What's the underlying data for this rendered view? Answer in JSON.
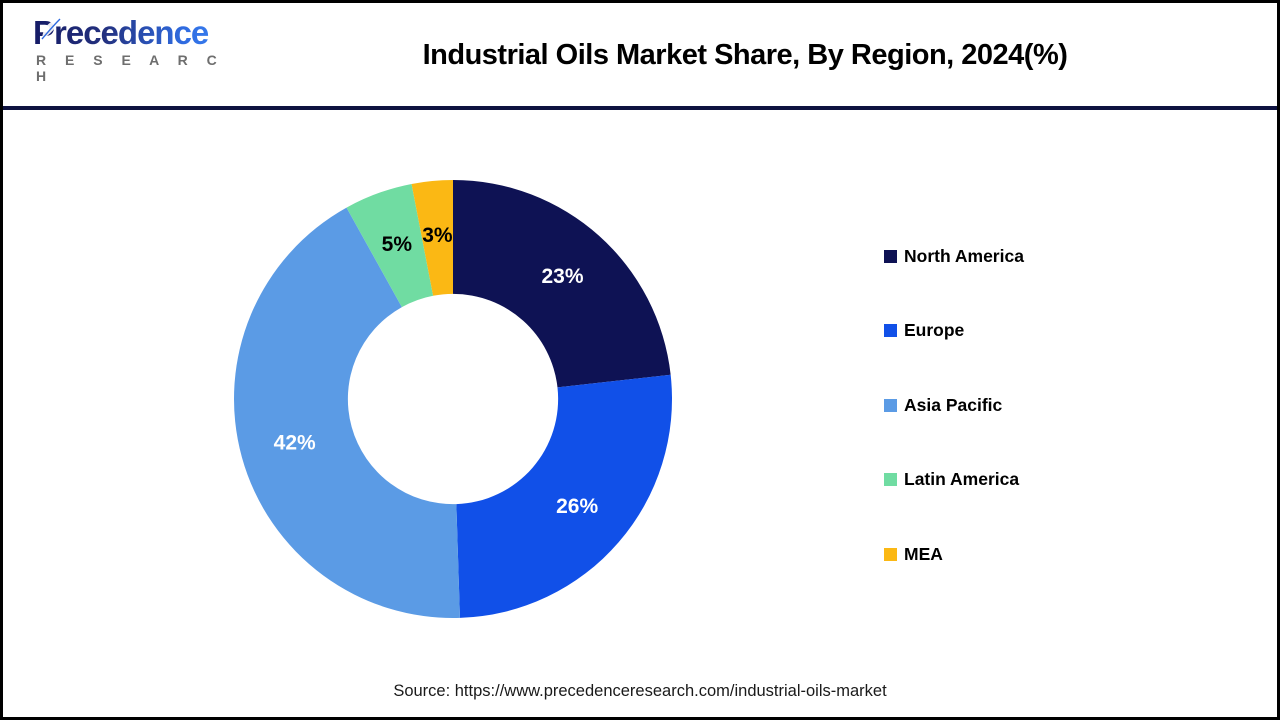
{
  "header": {
    "logo": {
      "brand": "Precedence",
      "sub": "R E S E A R C H"
    },
    "title": "Industrial Oils Market Share, By Region, 2024(%)"
  },
  "chart_data": {
    "type": "pie",
    "subtype": "donut",
    "title": "Industrial Oils Market Share, By Region, 2024(%)",
    "categories": [
      "North America",
      "Europe",
      "Asia Pacific",
      "Latin America",
      "MEA"
    ],
    "values": [
      23,
      26,
      42,
      5,
      3
    ],
    "labels": [
      "23%",
      "26%",
      "42%",
      "5%",
      "3%"
    ],
    "unit": "%",
    "colors": [
      "#0e1254",
      "#1150e8",
      "#5b9be5",
      "#70dca2",
      "#fbb814"
    ],
    "label_colors": [
      "#ffffff",
      "#ffffff",
      "#ffffff",
      "#000000",
      "#000000"
    ],
    "start_angle_deg": 0,
    "direction": "clockwise",
    "inner_radius_ratio": 0.48,
    "label_radius_ratio": 0.75,
    "legend_position": "right",
    "legend_marker": "square"
  },
  "footer": {
    "source": "Source: https://www.precedenceresearch.com/industrial-oils-market"
  }
}
